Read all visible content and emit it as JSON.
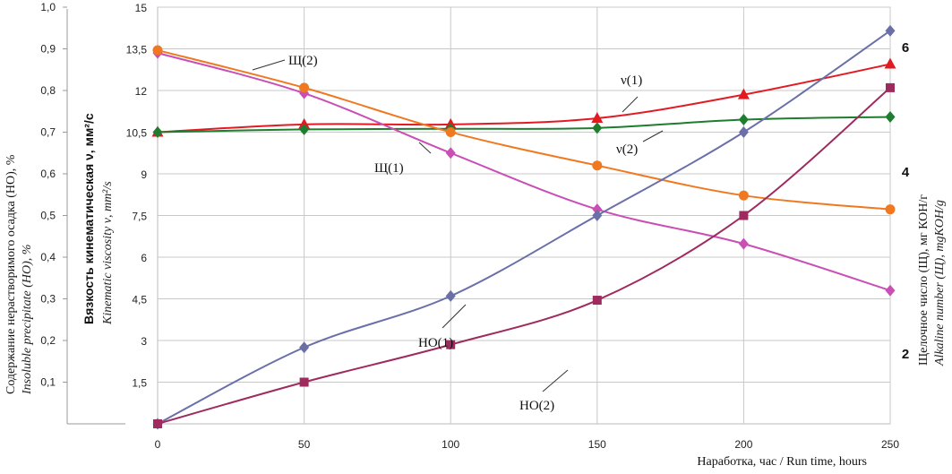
{
  "chart_data": {
    "type": "line",
    "x": [
      0,
      50,
      100,
      150,
      200,
      250
    ],
    "xlim": [
      0,
      250
    ],
    "x_ticks": [
      "0",
      "50",
      "100",
      "150",
      "200",
      "250"
    ],
    "xlabel": "Наработка, час / Run time, hours",
    "axes": {
      "viscosity": {
        "label_ru": "Вязкость кинематическая ν, мм²/с",
        "label_en": "Kinematic viscosity ν, mm²/s",
        "range": [
          0,
          15
        ],
        "ticks": [
          "1,5",
          "3",
          "4,5",
          "6",
          "7,5",
          "9",
          "10,5",
          "12",
          "13,5",
          "15"
        ]
      },
      "precipitate": {
        "label_ru": "Содержание нерастворимого осадка (НО), %",
        "label_en": "Insoluble precipitate (НО), %",
        "range": [
          0,
          1.0
        ],
        "ticks": [
          "0,1",
          "0,2",
          "0,3",
          "0,4",
          "0,5",
          "0,6",
          "0,7",
          "0,8",
          "0,9",
          "1,0"
        ]
      },
      "alkaline": {
        "label_ru": "Щелочное число (Щ), мг КОН/г",
        "label_en": "Alkaline number (Щ), mgKOH/g",
        "ticks": [
          "2",
          "4",
          "6"
        ]
      }
    },
    "series": [
      {
        "name": "ν(1)",
        "axis": "viscosity",
        "marker": "triangle",
        "color": "#e21b23",
        "values": [
          10.5,
          10.78,
          10.78,
          11.0,
          11.85,
          12.95
        ]
      },
      {
        "name": "ν(2)",
        "axis": "viscosity",
        "marker": "diamond",
        "color": "#1f7d2f",
        "values": [
          10.5,
          10.6,
          10.62,
          10.65,
          10.95,
          11.05
        ]
      },
      {
        "name": "Щ(1)",
        "axis": "viscosity",
        "marker": "diamond",
        "color": "#c94fb5",
        "values": [
          13.35,
          11.9,
          9.75,
          7.72,
          6.48,
          4.8
        ]
      },
      {
        "name": "Щ(2)",
        "axis": "viscosity",
        "marker": "circle",
        "color": "#f07820",
        "values": [
          13.45,
          12.1,
          10.5,
          9.3,
          8.22,
          7.72
        ]
      },
      {
        "name": "НО(1)",
        "axis": "viscosity",
        "marker": "diamond",
        "color": "#6a6fa8",
        "values": [
          0.0,
          2.75,
          4.6,
          7.5,
          10.5,
          14.15
        ]
      },
      {
        "name": "НО(2)",
        "axis": "viscosity",
        "marker": "square",
        "color": "#9e2a5e",
        "values": [
          0.0,
          1.5,
          2.85,
          4.45,
          7.5,
          12.1
        ]
      }
    ],
    "annotations": [
      "ν(1)",
      "ν(2)",
      "Щ(1)",
      "Щ(2)",
      "НО(1)",
      "НО(2)"
    ]
  }
}
